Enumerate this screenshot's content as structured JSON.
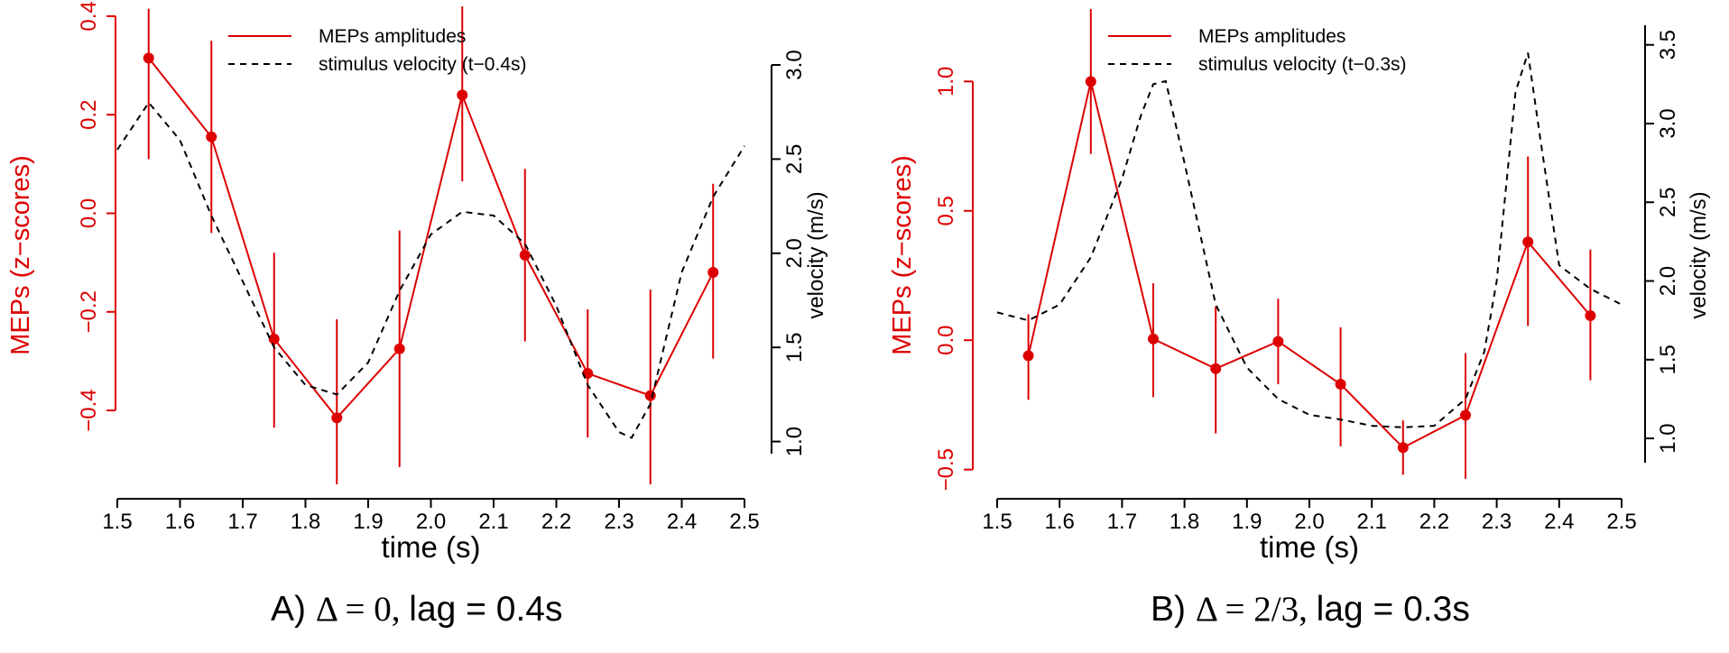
{
  "colors": {
    "meps": "#dd0000",
    "velocity": "#000000"
  },
  "chart_data": [
    {
      "type": "line",
      "panel_caption": {
        "prefix": "A)",
        "math": "Δ = 0,",
        "rest": "lag = 0.4s"
      },
      "xlabel": "time (s)",
      "ylabel_left": "MEPs (z−scores)",
      "ylabel_right": "velocity (m/s)",
      "xlim": [
        1.5,
        2.5
      ],
      "x_ticks": [
        "1.5",
        "1.6",
        "1.7",
        "1.8",
        "1.9",
        "2.0",
        "2.1",
        "2.2",
        "2.3",
        "2.4",
        "2.5"
      ],
      "ylim_left": [
        -0.55,
        0.42
      ],
      "y_ticks_left": [
        "−0.4",
        "−0.2",
        "0.0",
        "0.2",
        "0.4"
      ],
      "ylim_right": [
        0.95,
        3.0
      ],
      "y_ticks_right": [
        "1.0",
        "1.5",
        "2.0",
        "2.5",
        "3.0"
      ],
      "legend_position": "top",
      "series": [
        {
          "name": "MEPs amplitudes",
          "axis": "left",
          "style": "solid-points-errorbars",
          "x": [
            1.55,
            1.65,
            1.75,
            1.85,
            1.95,
            2.05,
            2.15,
            2.25,
            2.35,
            2.45
          ],
          "y": [
            0.315,
            0.155,
            -0.255,
            -0.415,
            -0.275,
            0.24,
            -0.085,
            -0.325,
            -0.37,
            -0.12
          ],
          "err_low": [
            0.11,
            -0.04,
            -0.435,
            -0.55,
            -0.515,
            0.065,
            -0.26,
            -0.455,
            -0.55,
            -0.295
          ],
          "err_high": [
            0.415,
            0.35,
            -0.08,
            -0.215,
            -0.035,
            0.42,
            0.09,
            -0.195,
            -0.155,
            0.06
          ]
        },
        {
          "name": "stimulus velocity (t−0.4s)",
          "axis": "right",
          "style": "dashed",
          "x": [
            1.5,
            1.55,
            1.6,
            1.65,
            1.7,
            1.75,
            1.8,
            1.85,
            1.9,
            1.95,
            2.0,
            2.05,
            2.1,
            2.15,
            2.2,
            2.25,
            2.3,
            2.32,
            2.35,
            2.4,
            2.45,
            2.5
          ],
          "y": [
            2.55,
            2.8,
            2.6,
            2.2,
            1.85,
            1.5,
            1.3,
            1.25,
            1.42,
            1.8,
            2.1,
            2.22,
            2.2,
            2.05,
            1.72,
            1.3,
            1.05,
            1.02,
            1.2,
            1.9,
            2.3,
            2.57
          ]
        }
      ]
    },
    {
      "type": "line",
      "panel_caption": {
        "prefix": "B)",
        "math": "Δ = 2/3,",
        "rest": "lag = 0.3s"
      },
      "xlabel": "time (s)",
      "ylabel_left": "MEPs (z−scores)",
      "ylabel_right": "velocity (m/s)",
      "xlim": [
        1.5,
        2.5
      ],
      "x_ticks": [
        "1.5",
        "1.6",
        "1.7",
        "1.8",
        "1.9",
        "2.0",
        "2.1",
        "2.2",
        "2.3",
        "2.4",
        "2.5"
      ],
      "ylim_left": [
        -0.55,
        1.28
      ],
      "y_ticks_left": [
        "−0.5",
        "0.0",
        "0.5",
        "1.0"
      ],
      "ylim_right": [
        0.88,
        3.55
      ],
      "y_ticks_right": [
        "1.0",
        "1.5",
        "2.0",
        "2.5",
        "3.0",
        "3.5"
      ],
      "legend_position": "top",
      "series": [
        {
          "name": "MEPs amplitudes",
          "axis": "left",
          "style": "solid-points-errorbars",
          "x": [
            1.55,
            1.65,
            1.75,
            1.85,
            1.95,
            2.05,
            2.15,
            2.25,
            2.35,
            2.45
          ],
          "y": [
            -0.06,
            1.0,
            0.005,
            -0.11,
            -0.005,
            -0.17,
            -0.415,
            -0.29,
            0.38,
            0.095
          ],
          "err_low": [
            -0.23,
            0.72,
            -0.22,
            -0.36,
            -0.17,
            -0.41,
            -0.52,
            -0.535,
            0.055,
            -0.155
          ],
          "err_high": [
            0.1,
            1.28,
            0.22,
            0.13,
            0.16,
            0.05,
            -0.31,
            -0.05,
            0.71,
            0.35
          ]
        },
        {
          "name": "stimulus velocity (t−0.3s)",
          "axis": "right",
          "style": "dashed",
          "x": [
            1.5,
            1.55,
            1.6,
            1.65,
            1.7,
            1.73,
            1.75,
            1.77,
            1.8,
            1.85,
            1.9,
            1.95,
            2.0,
            2.05,
            2.1,
            2.15,
            2.2,
            2.25,
            2.28,
            2.3,
            2.33,
            2.35,
            2.37,
            2.4,
            2.45,
            2.5
          ],
          "y": [
            1.8,
            1.75,
            1.85,
            2.15,
            2.65,
            3.05,
            3.25,
            3.27,
            2.75,
            1.85,
            1.45,
            1.25,
            1.15,
            1.12,
            1.08,
            1.07,
            1.08,
            1.25,
            1.55,
            2.0,
            3.2,
            3.45,
            2.9,
            2.1,
            1.95,
            1.85
          ]
        }
      ]
    }
  ]
}
